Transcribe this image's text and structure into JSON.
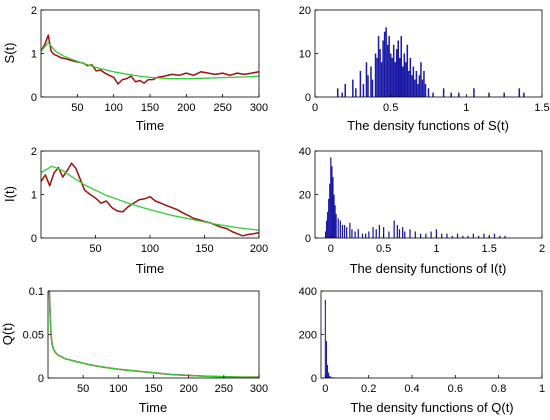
{
  "chart_data": [
    {
      "id": "s_time",
      "type": "line",
      "ylabel": "S(t)",
      "xlabel": "Time",
      "xlim": [
        0,
        300
      ],
      "ylim": [
        0,
        2
      ],
      "xticks": [
        50,
        100,
        150,
        200,
        250,
        300
      ],
      "yticks": [
        0,
        1,
        2
      ],
      "series": [
        {
          "role": "stochastic path (red)",
          "color": "#a01010",
          "x": [
            0,
            5,
            10,
            14,
            18,
            22,
            28,
            34,
            40,
            46,
            52,
            58,
            64,
            70,
            76,
            82,
            88,
            94,
            100,
            106,
            112,
            118,
            124,
            130,
            136,
            142,
            148,
            154,
            160,
            170,
            180,
            190,
            200,
            210,
            220,
            230,
            240,
            250,
            260,
            270,
            280,
            290,
            300
          ],
          "y": [
            1.05,
            1.2,
            1.42,
            1.05,
            0.98,
            0.95,
            0.9,
            0.88,
            0.85,
            0.82,
            0.8,
            0.78,
            0.72,
            0.74,
            0.6,
            0.62,
            0.55,
            0.5,
            0.45,
            0.3,
            0.4,
            0.42,
            0.48,
            0.35,
            0.38,
            0.32,
            0.4,
            0.4,
            0.45,
            0.48,
            0.52,
            0.5,
            0.55,
            0.5,
            0.58,
            0.55,
            0.52,
            0.55,
            0.5,
            0.55,
            0.52,
            0.55,
            0.58
          ]
        },
        {
          "role": "deterministic path (green)",
          "color": "#33cc33",
          "x": [
            0,
            10,
            20,
            30,
            40,
            60,
            80,
            100,
            120,
            140,
            160,
            180,
            200,
            220,
            240,
            260,
            280,
            300
          ],
          "y": [
            1.05,
            1.25,
            1.05,
            0.95,
            0.88,
            0.76,
            0.66,
            0.58,
            0.52,
            0.47,
            0.44,
            0.42,
            0.42,
            0.43,
            0.44,
            0.45,
            0.46,
            0.48
          ]
        }
      ]
    },
    {
      "id": "s_density",
      "type": "bar",
      "xlabel": "The density functions of S(t)",
      "xlim": [
        0,
        1.5
      ],
      "ylim": [
        0,
        20
      ],
      "xticks": [
        "0",
        "0.5",
        "1",
        "1.5"
      ],
      "yticks": [
        0,
        10,
        20
      ],
      "color": "#1a1aa6",
      "bin_width": 0.01,
      "bins_x": [
        0.15,
        0.18,
        0.2,
        0.25,
        0.27,
        0.3,
        0.32,
        0.34,
        0.35,
        0.37,
        0.38,
        0.4,
        0.41,
        0.42,
        0.43,
        0.44,
        0.45,
        0.46,
        0.47,
        0.48,
        0.49,
        0.5,
        0.51,
        0.52,
        0.53,
        0.54,
        0.55,
        0.56,
        0.57,
        0.58,
        0.59,
        0.6,
        0.61,
        0.62,
        0.63,
        0.64,
        0.65,
        0.66,
        0.67,
        0.68,
        0.69,
        0.7,
        0.71,
        0.72,
        0.73,
        0.75,
        0.78,
        0.85,
        0.9,
        0.95,
        1.05,
        1.15,
        1.25,
        1.35,
        1.38
      ],
      "bins_y": [
        2,
        1,
        3,
        4,
        2,
        6,
        3,
        8,
        5,
        7,
        4,
        10,
        9,
        14,
        11,
        8,
        13,
        15,
        16,
        12,
        14,
        10,
        9,
        12,
        8,
        11,
        13,
        9,
        14,
        7,
        10,
        8,
        12,
        6,
        9,
        5,
        7,
        4,
        6,
        3,
        5,
        8,
        4,
        6,
        3,
        2,
        1,
        2,
        1,
        1,
        2,
        1,
        1,
        2,
        1
      ]
    },
    {
      "id": "i_time",
      "type": "line",
      "ylabel": "I(t)",
      "xlabel": "Time",
      "xlim": [
        0,
        200
      ],
      "ylim": [
        0,
        2
      ],
      "xticks": [
        50,
        100,
        150,
        200
      ],
      "yticks": [
        0,
        1,
        2
      ],
      "series": [
        {
          "role": "stochastic path (red)",
          "color": "#a01010",
          "x": [
            0,
            4,
            8,
            12,
            16,
            20,
            24,
            28,
            32,
            36,
            40,
            45,
            50,
            55,
            60,
            65,
            70,
            75,
            80,
            85,
            90,
            95,
            100,
            105,
            110,
            115,
            120,
            125,
            130,
            135,
            140,
            145,
            150,
            155,
            160,
            165,
            170,
            175,
            180,
            185,
            190,
            195,
            200
          ],
          "y": [
            1.3,
            1.45,
            1.2,
            1.5,
            1.62,
            1.4,
            1.55,
            1.72,
            1.6,
            1.35,
            1.1,
            1.0,
            0.92,
            0.8,
            0.85,
            0.7,
            0.62,
            0.6,
            0.72,
            0.8,
            0.88,
            0.9,
            0.95,
            0.85,
            0.8,
            0.75,
            0.7,
            0.65,
            0.58,
            0.52,
            0.45,
            0.42,
            0.38,
            0.35,
            0.3,
            0.25,
            0.22,
            0.15,
            0.1,
            0.05,
            0.08,
            0.1,
            0.12
          ]
        },
        {
          "role": "deterministic path (green)",
          "color": "#33cc33",
          "x": [
            0,
            10,
            20,
            30,
            40,
            60,
            80,
            100,
            120,
            140,
            160,
            180,
            200
          ],
          "y": [
            1.5,
            1.65,
            1.55,
            1.38,
            1.22,
            0.98,
            0.8,
            0.65,
            0.52,
            0.42,
            0.32,
            0.24,
            0.18
          ]
        }
      ]
    },
    {
      "id": "i_density",
      "type": "bar",
      "xlabel": "The density functions of I(t)",
      "xlim": [
        -0.15,
        2
      ],
      "ylim": [
        0,
        40
      ],
      "xticks": [
        "0",
        "0.5",
        "1",
        "1.5",
        "2"
      ],
      "yticks": [
        0,
        20,
        40
      ],
      "color": "#1a1aa6",
      "bin_width": 0.012,
      "bins_x": [
        -0.05,
        -0.04,
        -0.03,
        -0.02,
        -0.01,
        0.0,
        0.01,
        0.02,
        0.03,
        0.04,
        0.05,
        0.07,
        0.09,
        0.11,
        0.13,
        0.15,
        0.18,
        0.2,
        0.23,
        0.26,
        0.3,
        0.33,
        0.36,
        0.4,
        0.43,
        0.46,
        0.5,
        0.55,
        0.6,
        0.63,
        0.65,
        0.68,
        0.7,
        0.75,
        0.8,
        0.85,
        0.9,
        0.95,
        1.0,
        1.05,
        1.1,
        1.15,
        1.2,
        1.25,
        1.3,
        1.35,
        1.4,
        1.45,
        1.5,
        1.55,
        1.6,
        1.65
      ],
      "bins_y": [
        3,
        8,
        12,
        18,
        25,
        37,
        33,
        28,
        20,
        15,
        11,
        9,
        8,
        6,
        6,
        5,
        7,
        4,
        3,
        4,
        2,
        2,
        3,
        5,
        4,
        6,
        5,
        3,
        8,
        6,
        4,
        5,
        3,
        4,
        3,
        2,
        2,
        3,
        4,
        2,
        2,
        1,
        2,
        1,
        1,
        2,
        1,
        2,
        1,
        2,
        1,
        1
      ]
    },
    {
      "id": "q_time",
      "type": "line",
      "ylabel": "Q(t)",
      "xlabel": "Time",
      "xlim": [
        0,
        300
      ],
      "ylim": [
        0,
        0.1
      ],
      "xticks": [
        50,
        100,
        150,
        200,
        250,
        300
      ],
      "yticks": [
        0,
        0.05,
        0.1
      ],
      "ytick_labels": [
        "0",
        "0.05",
        "0.1"
      ],
      "series": [
        {
          "role": "stochastic path (red)",
          "color": "#a01010",
          "x": [
            2,
            3,
            4,
            5,
            6,
            8,
            10,
            12,
            15,
            20,
            25,
            30,
            40,
            50,
            60,
            75,
            100,
            125,
            150,
            175,
            200,
            225,
            250,
            275,
            300
          ],
          "y": [
            0.1,
            0.075,
            0.055,
            0.045,
            0.038,
            0.033,
            0.03,
            0.028,
            0.026,
            0.024,
            0.022,
            0.021,
            0.019,
            0.017,
            0.015,
            0.013,
            0.01,
            0.008,
            0.006,
            0.004,
            0.003,
            0.002,
            0.0015,
            0.001,
            0.001
          ]
        },
        {
          "role": "deterministic path (green)",
          "color": "#33cc33",
          "x": [
            2,
            3,
            4,
            5,
            6,
            8,
            10,
            12,
            15,
            20,
            25,
            30,
            40,
            50,
            60,
            75,
            100,
            125,
            150,
            175,
            200,
            225,
            250,
            275,
            300
          ],
          "y": [
            0.1,
            0.074,
            0.055,
            0.045,
            0.038,
            0.033,
            0.03,
            0.028,
            0.026,
            0.024,
            0.022,
            0.021,
            0.019,
            0.017,
            0.015,
            0.013,
            0.01,
            0.008,
            0.006,
            0.004,
            0.003,
            0.002,
            0.0015,
            0.001,
            0.0008
          ]
        }
      ]
    },
    {
      "id": "q_density",
      "type": "bar",
      "xlabel": "The density functions of Q(t)",
      "xlim": [
        -0.02,
        1
      ],
      "ylim": [
        0,
        400
      ],
      "xticks": [
        "0",
        "0.2",
        "0.4",
        "0.6",
        "0.8",
        "1"
      ],
      "yticks": [
        0,
        200,
        400
      ],
      "color": "#1a1aa6",
      "bin_width": 0.005,
      "bins_x": [
        0.0,
        0.005,
        0.01,
        0.015,
        0.02,
        0.025,
        0.03,
        0.04,
        0.05,
        0.06,
        0.08,
        0.1
      ],
      "bins_y": [
        360,
        170,
        60,
        25,
        10,
        6,
        4,
        3,
        2,
        2,
        1,
        1
      ]
    }
  ]
}
